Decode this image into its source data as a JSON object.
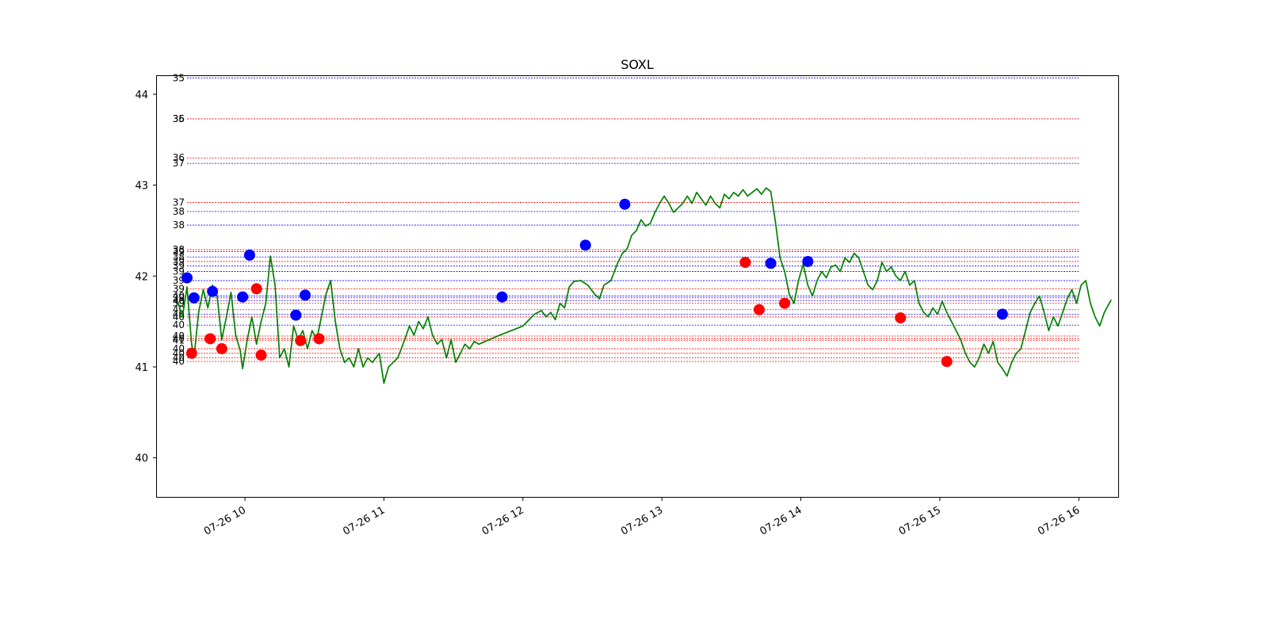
{
  "chart_data": {
    "type": "line",
    "title": "SOXL",
    "xlabel": "",
    "ylabel": "",
    "grid": false,
    "xlim": [
      "07-26 09:22",
      "07-26 16:17"
    ],
    "ylim": [
      39.57,
      44.2
    ],
    "x_ticks": [
      "07-26 10",
      "07-26 11",
      "07-26 12",
      "07-26 13",
      "07-26 14",
      "07-26 15",
      "07-26 16"
    ],
    "x_tick_times": [
      "07-26 10:00",
      "07-26 11:00",
      "07-26 12:00",
      "07-26 13:00",
      "07-26 14:00",
      "07-26 15:00",
      "07-26 16:00"
    ],
    "y_ticks": [
      40,
      41,
      42,
      43,
      44
    ],
    "series": [
      {
        "color": "#008000",
        "points": [
          [
            "09:31",
            41.72
          ],
          [
            "09:33",
            41.55
          ],
          [
            "09:35",
            41.88
          ],
          [
            "09:37",
            41.25
          ],
          [
            "09:38",
            41.1
          ],
          [
            "09:40",
            41.6
          ],
          [
            "09:42",
            41.85
          ],
          [
            "09:44",
            41.65
          ],
          [
            "09:46",
            41.9
          ],
          [
            "09:48",
            41.78
          ],
          [
            "09:50",
            41.3
          ],
          [
            "09:52",
            41.55
          ],
          [
            "09:54",
            41.82
          ],
          [
            "09:56",
            41.35
          ],
          [
            "09:58",
            41.18
          ],
          [
            "09:59",
            40.98
          ],
          [
            "10:01",
            41.3
          ],
          [
            "10:03",
            41.55
          ],
          [
            "10:05",
            41.25
          ],
          [
            "10:07",
            41.5
          ],
          [
            "10:09",
            41.7
          ],
          [
            "10:11",
            42.22
          ],
          [
            "10:13",
            41.9
          ],
          [
            "10:15",
            41.1
          ],
          [
            "10:17",
            41.2
          ],
          [
            "10:19",
            41.0
          ],
          [
            "10:21",
            41.45
          ],
          [
            "10:23",
            41.3
          ],
          [
            "10:25",
            41.4
          ],
          [
            "10:27",
            41.2
          ],
          [
            "10:29",
            41.4
          ],
          [
            "10:31",
            41.3
          ],
          [
            "10:33",
            41.55
          ],
          [
            "10:35",
            41.8
          ],
          [
            "10:37",
            41.95
          ],
          [
            "10:39",
            41.5
          ],
          [
            "10:41",
            41.2
          ],
          [
            "10:43",
            41.05
          ],
          [
            "10:45",
            41.1
          ],
          [
            "10:47",
            41.0
          ],
          [
            "10:49",
            41.2
          ],
          [
            "10:51",
            41.0
          ],
          [
            "10:53",
            41.1
          ],
          [
            "10:55",
            41.05
          ],
          [
            "10:58",
            41.15
          ],
          [
            "11:00",
            40.82
          ],
          [
            "11:02",
            41.0
          ],
          [
            "11:04",
            41.05
          ],
          [
            "11:06",
            41.1
          ],
          [
            "11:09",
            41.3
          ],
          [
            "11:11",
            41.45
          ],
          [
            "11:13",
            41.35
          ],
          [
            "11:15",
            41.5
          ],
          [
            "11:17",
            41.42
          ],
          [
            "11:19",
            41.55
          ],
          [
            "11:21",
            41.35
          ],
          [
            "11:23",
            41.25
          ],
          [
            "11:25",
            41.3
          ],
          [
            "11:27",
            41.1
          ],
          [
            "11:29",
            41.3
          ],
          [
            "11:31",
            41.05
          ],
          [
            "11:33",
            41.15
          ],
          [
            "11:35",
            41.25
          ],
          [
            "11:37",
            41.2
          ],
          [
            "11:39",
            41.28
          ],
          [
            "11:41",
            41.25
          ],
          [
            "11:50",
            41.35
          ],
          [
            "12:00",
            41.45
          ],
          [
            "12:05",
            41.58
          ],
          [
            "12:08",
            41.62
          ],
          [
            "12:10",
            41.55
          ],
          [
            "12:12",
            41.6
          ],
          [
            "12:14",
            41.52
          ],
          [
            "12:16",
            41.7
          ],
          [
            "12:18",
            41.65
          ],
          [
            "12:20",
            41.88
          ],
          [
            "12:22",
            41.94
          ],
          [
            "12:25",
            41.95
          ],
          [
            "12:28",
            41.9
          ],
          [
            "12:31",
            41.8
          ],
          [
            "12:33",
            41.75
          ],
          [
            "12:35",
            41.9
          ],
          [
            "12:38",
            41.95
          ],
          [
            "12:41",
            42.15
          ],
          [
            "12:43",
            42.25
          ],
          [
            "12:45",
            42.3
          ],
          [
            "12:47",
            42.45
          ],
          [
            "12:49",
            42.5
          ],
          [
            "12:51",
            42.62
          ],
          [
            "12:53",
            42.55
          ],
          [
            "12:55",
            42.58
          ],
          [
            "12:57",
            42.7
          ],
          [
            "12:59",
            42.8
          ],
          [
            "13:01",
            42.88
          ],
          [
            "13:03",
            42.8
          ],
          [
            "13:05",
            42.7
          ],
          [
            "13:07",
            42.75
          ],
          [
            "13:09",
            42.8
          ],
          [
            "13:11",
            42.88
          ],
          [
            "13:13",
            42.8
          ],
          [
            "13:15",
            42.92
          ],
          [
            "13:17",
            42.85
          ],
          [
            "13:19",
            42.78
          ],
          [
            "13:21",
            42.88
          ],
          [
            "13:23",
            42.8
          ],
          [
            "13:25",
            42.75
          ],
          [
            "13:27",
            42.9
          ],
          [
            "13:29",
            42.85
          ],
          [
            "13:31",
            42.92
          ],
          [
            "13:33",
            42.88
          ],
          [
            "13:35",
            42.95
          ],
          [
            "13:37",
            42.88
          ],
          [
            "13:39",
            42.92
          ],
          [
            "13:41",
            42.96
          ],
          [
            "13:43",
            42.9
          ],
          [
            "13:45",
            42.97
          ],
          [
            "13:47",
            42.93
          ],
          [
            "13:49",
            42.6
          ],
          [
            "13:51",
            42.2
          ],
          [
            "13:53",
            42.05
          ],
          [
            "13:55",
            41.8
          ],
          [
            "13:57",
            41.7
          ],
          [
            "13:59",
            41.95
          ],
          [
            "14:01",
            42.13
          ],
          [
            "14:03",
            41.9
          ],
          [
            "14:05",
            41.78
          ],
          [
            "14:07",
            41.95
          ],
          [
            "14:09",
            42.05
          ],
          [
            "14:11",
            41.98
          ],
          [
            "14:13",
            42.1
          ],
          [
            "14:15",
            42.12
          ],
          [
            "14:17",
            42.05
          ],
          [
            "14:19",
            42.2
          ],
          [
            "14:21",
            42.15
          ],
          [
            "14:23",
            42.25
          ],
          [
            "14:25",
            42.2
          ],
          [
            "14:27",
            42.05
          ],
          [
            "14:29",
            41.9
          ],
          [
            "14:31",
            41.85
          ],
          [
            "14:33",
            41.95
          ],
          [
            "14:35",
            42.15
          ],
          [
            "14:37",
            42.05
          ],
          [
            "14:39",
            42.1
          ],
          [
            "14:41",
            42.0
          ],
          [
            "14:43",
            41.95
          ],
          [
            "14:45",
            42.05
          ],
          [
            "14:47",
            41.9
          ],
          [
            "14:49",
            41.95
          ],
          [
            "14:51",
            41.7
          ],
          [
            "14:53",
            41.6
          ],
          [
            "14:55",
            41.55
          ],
          [
            "14:57",
            41.65
          ],
          [
            "14:59",
            41.58
          ],
          [
            "15:01",
            41.72
          ],
          [
            "15:03",
            41.6
          ],
          [
            "15:05",
            41.5
          ],
          [
            "15:07",
            41.4
          ],
          [
            "15:09",
            41.3
          ],
          [
            "15:11",
            41.15
          ],
          [
            "15:13",
            41.05
          ],
          [
            "15:15",
            41.0
          ],
          [
            "15:17",
            41.1
          ],
          [
            "15:19",
            41.25
          ],
          [
            "15:21",
            41.15
          ],
          [
            "15:23",
            41.28
          ],
          [
            "15:25",
            41.05
          ],
          [
            "15:27",
            40.98
          ],
          [
            "15:29",
            40.9
          ],
          [
            "15:31",
            41.05
          ],
          [
            "15:33",
            41.15
          ],
          [
            "15:35",
            41.2
          ],
          [
            "15:37",
            41.4
          ],
          [
            "15:39",
            41.6
          ],
          [
            "15:41",
            41.7
          ],
          [
            "15:43",
            41.78
          ],
          [
            "15:45",
            41.6
          ],
          [
            "15:47",
            41.4
          ],
          [
            "15:49",
            41.55
          ],
          [
            "15:51",
            41.45
          ],
          [
            "15:53",
            41.6
          ],
          [
            "15:55",
            41.75
          ],
          [
            "15:57",
            41.85
          ],
          [
            "15:59",
            41.7
          ],
          [
            "16:01",
            41.9
          ],
          [
            "16:03",
            41.95
          ],
          [
            "16:05",
            41.7
          ],
          [
            "16:07",
            41.55
          ],
          [
            "16:09",
            41.45
          ],
          [
            "16:11",
            41.6
          ],
          [
            "16:14",
            41.74
          ]
        ]
      }
    ],
    "markers": [
      {
        "time": "09:35",
        "y": 41.98,
        "color": "#0000ff"
      },
      {
        "time": "09:38",
        "y": 41.76,
        "color": "#0000ff"
      },
      {
        "time": "09:46",
        "y": 41.83,
        "color": "#0000ff"
      },
      {
        "time": "09:59",
        "y": 41.77,
        "color": "#0000ff"
      },
      {
        "time": "10:02",
        "y": 42.23,
        "color": "#0000ff"
      },
      {
        "time": "10:22",
        "y": 41.57,
        "color": "#0000ff"
      },
      {
        "time": "10:26",
        "y": 41.79,
        "color": "#0000ff"
      },
      {
        "time": "11:51",
        "y": 41.77,
        "color": "#0000ff"
      },
      {
        "time": "12:27",
        "y": 42.34,
        "color": "#0000ff"
      },
      {
        "time": "12:44",
        "y": 42.79,
        "color": "#0000ff"
      },
      {
        "time": "13:47",
        "y": 42.14,
        "color": "#0000ff"
      },
      {
        "time": "14:03",
        "y": 42.16,
        "color": "#0000ff"
      },
      {
        "time": "15:27",
        "y": 41.58,
        "color": "#0000ff"
      },
      {
        "time": "09:37",
        "y": 41.15,
        "color": "#ff0000"
      },
      {
        "time": "09:45",
        "y": 41.31,
        "color": "#ff0000"
      },
      {
        "time": "09:50",
        "y": 41.2,
        "color": "#ff0000"
      },
      {
        "time": "10:05",
        "y": 41.86,
        "color": "#ff0000"
      },
      {
        "time": "10:07",
        "y": 41.13,
        "color": "#ff0000"
      },
      {
        "time": "10:24",
        "y": 41.29,
        "color": "#ff0000"
      },
      {
        "time": "10:32",
        "y": 41.31,
        "color": "#ff0000"
      },
      {
        "time": "13:36",
        "y": 42.15,
        "color": "#ff0000"
      },
      {
        "time": "13:42",
        "y": 41.63,
        "color": "#ff0000"
      },
      {
        "time": "13:53",
        "y": 41.7,
        "color": "#ff0000"
      },
      {
        "time": "14:43",
        "y": 41.54,
        "color": "#ff0000"
      },
      {
        "time": "15:03",
        "y": 41.06,
        "color": "#ff0000"
      }
    ],
    "level_lines": [
      {
        "y": 44.18,
        "color": "#0000ff",
        "label": "35"
      },
      {
        "y": 43.73,
        "color": "#0000ff",
        "label": "35"
      },
      {
        "y": 43.73,
        "color": "#ff0000",
        "label": "36"
      },
      {
        "y": 43.3,
        "color": "#ff0000",
        "label": "36"
      },
      {
        "y": 43.24,
        "color": "#0000ff",
        "label": "37"
      },
      {
        "y": 42.81,
        "color": "#ff0000",
        "label": "37"
      },
      {
        "y": 42.71,
        "color": "#0000ff",
        "label": "38"
      },
      {
        "y": 42.56,
        "color": "#0000ff",
        "label": "38"
      },
      {
        "y": 42.29,
        "color": "#ff0000",
        "label": "38"
      },
      {
        "y": 42.27,
        "color": "#0000ff",
        "label": "39"
      },
      {
        "y": 42.21,
        "color": "#0000ff",
        "label": "38"
      },
      {
        "y": 42.16,
        "color": "#ff0000",
        "label": "39"
      },
      {
        "y": 42.11,
        "color": "#0000ff",
        "label": "39"
      },
      {
        "y": 42.05,
        "color": "#0000ff",
        "label": "39"
      },
      {
        "y": 41.95,
        "color": "#0000ff",
        "label": "39"
      },
      {
        "y": 41.86,
        "color": "#ff0000",
        "label": "39"
      },
      {
        "y": 41.78,
        "color": "#0000ff",
        "label": "40"
      },
      {
        "y": 41.76,
        "color": "#ff0000",
        "label": "39"
      },
      {
        "y": 41.73,
        "color": "#0000ff",
        "label": "40"
      },
      {
        "y": 41.7,
        "color": "#ff0000",
        "label": "39"
      },
      {
        "y": 41.63,
        "color": "#ff0000",
        "label": "40"
      },
      {
        "y": 41.58,
        "color": "#0000ff",
        "label": "40"
      },
      {
        "y": 41.55,
        "color": "#ff0000",
        "label": "40"
      },
      {
        "y": 41.46,
        "color": "#0000ff",
        "label": "40"
      },
      {
        "y": 41.34,
        "color": "#ff0000",
        "label": "40"
      },
      {
        "y": 41.31,
        "color": "#ff0000",
        "label": "40"
      },
      {
        "y": 41.29,
        "color": "#ff0000",
        "label": "41"
      },
      {
        "y": 41.2,
        "color": "#ff0000",
        "label": "40"
      },
      {
        "y": 41.15,
        "color": "#ff0000",
        "label": "40"
      },
      {
        "y": 41.1,
        "color": "#ff0000",
        "label": "40"
      },
      {
        "y": 41.06,
        "color": "#ff0000",
        "label": "40"
      }
    ],
    "level_line_span": [
      "09:35",
      "16:00"
    ]
  }
}
